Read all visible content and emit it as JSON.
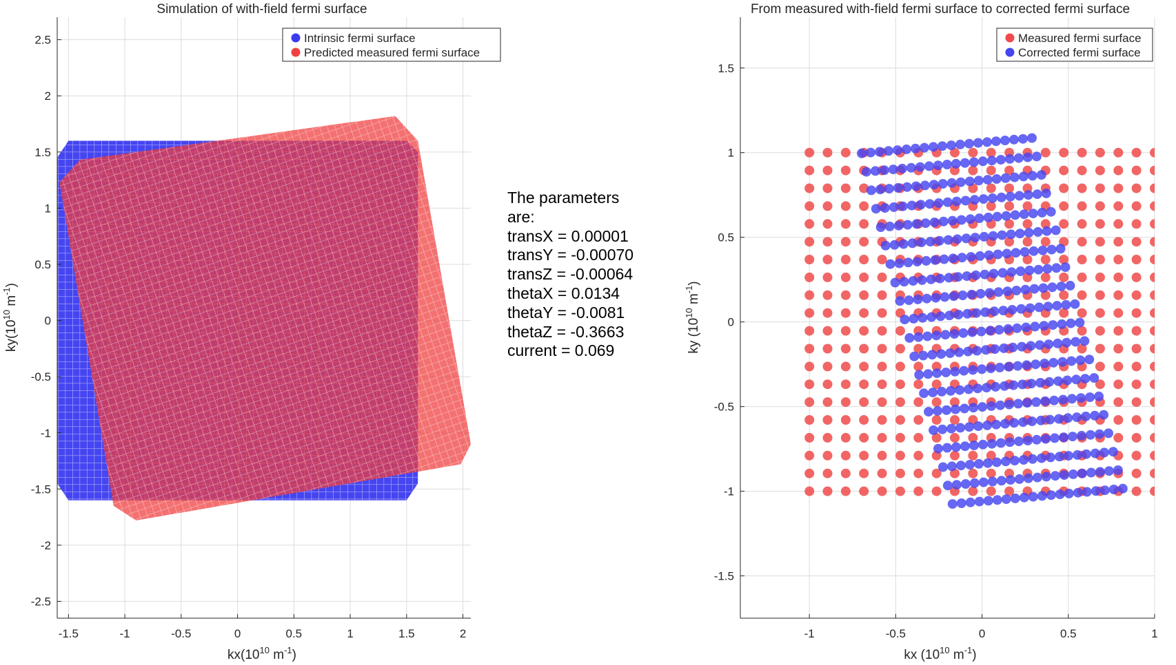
{
  "params": {
    "line1": "The parameters",
    "line2": "are:",
    "transX": "transX = 0.00001",
    "transY": "transY = -0.00070",
    "transZ": "transZ = -0.00064",
    "thetaX": "thetaX = 0.0134",
    "thetaY": "thetaY = -0.0081",
    "thetaZ": "thetaZ = -0.3663",
    "current": "current = 0.069"
  },
  "chart_data": [
    {
      "type": "scatter",
      "title": "Simulation of with-field fermi surface",
      "xlabel": "kx(10^10 m^-1)",
      "ylabel": "ky(10^10 m^-1)",
      "xlim": [
        -1.6,
        2.07
      ],
      "ylim": [
        -2.65,
        2.7
      ],
      "xticks": [
        "-1.5",
        "-1",
        "-0.5",
        "0",
        "0.5",
        "1",
        "1.5",
        "2"
      ],
      "yticks": [
        "2.5",
        "2",
        "1.5",
        "1",
        "0.5",
        "0",
        "-0.5",
        "-1",
        "-1.5",
        "-2",
        "-2.5"
      ],
      "grid": true,
      "legend_placement": "top-right",
      "series": [
        {
          "name": "Intrinsic fermi surface",
          "color": "#3b3bf0",
          "shape": "octagon-filled-square",
          "polygon": [
            [
              -1.6,
              1.45
            ],
            [
              -1.5,
              1.6
            ],
            [
              1.5,
              1.6
            ],
            [
              1.6,
              1.5
            ],
            [
              1.6,
              -1.45
            ],
            [
              1.5,
              -1.6
            ],
            [
              -1.5,
              -1.6
            ],
            [
              -1.6,
              -1.45
            ]
          ]
        },
        {
          "name": "Predicted measured fermi surface",
          "color": "#f04040",
          "shape": "rotated-filled-square",
          "polygon": [
            [
              -1.58,
              1.23
            ],
            [
              -1.4,
              1.43
            ],
            [
              1.4,
              1.82
            ],
            [
              1.6,
              1.6
            ],
            [
              2.07,
              -1.1
            ],
            [
              1.98,
              -1.28
            ],
            [
              -0.9,
              -1.78
            ],
            [
              -1.1,
              -1.65
            ]
          ]
        }
      ]
    },
    {
      "type": "scatter",
      "title": "From measured with-field fermi surface to corrected fermi surface",
      "xlabel": "kx (10^10 m^-1)",
      "ylabel": "ky (10^10 m^-1)",
      "xlim": [
        -1.4,
        1.0
      ],
      "ylim": [
        -1.75,
        1.8
      ],
      "xticks": [
        "-1",
        "-0.5",
        "0",
        "0.5",
        "1"
      ],
      "yticks": [
        "1.5",
        "1",
        "0.5",
        "0",
        "-0.5",
        "-1",
        "-1.5"
      ],
      "grid": true,
      "legend_placement": "top-right",
      "series": [
        {
          "name": "Measured fermi surface",
          "color": "#f04a4a",
          "grid_x_range": [
            -1.0,
            1.0
          ],
          "grid_y_range": [
            -1.0,
            1.0
          ],
          "step": 0.105
        },
        {
          "name": "Corrected fermi surface",
          "color": "#4646f0",
          "grid_x_range": [
            -1.0,
            1.0
          ],
          "grid_y_range": [
            -1.0,
            1.0
          ],
          "step": 0.105,
          "rotation_deg": 9.5,
          "shear": 0.15
        }
      ]
    }
  ]
}
